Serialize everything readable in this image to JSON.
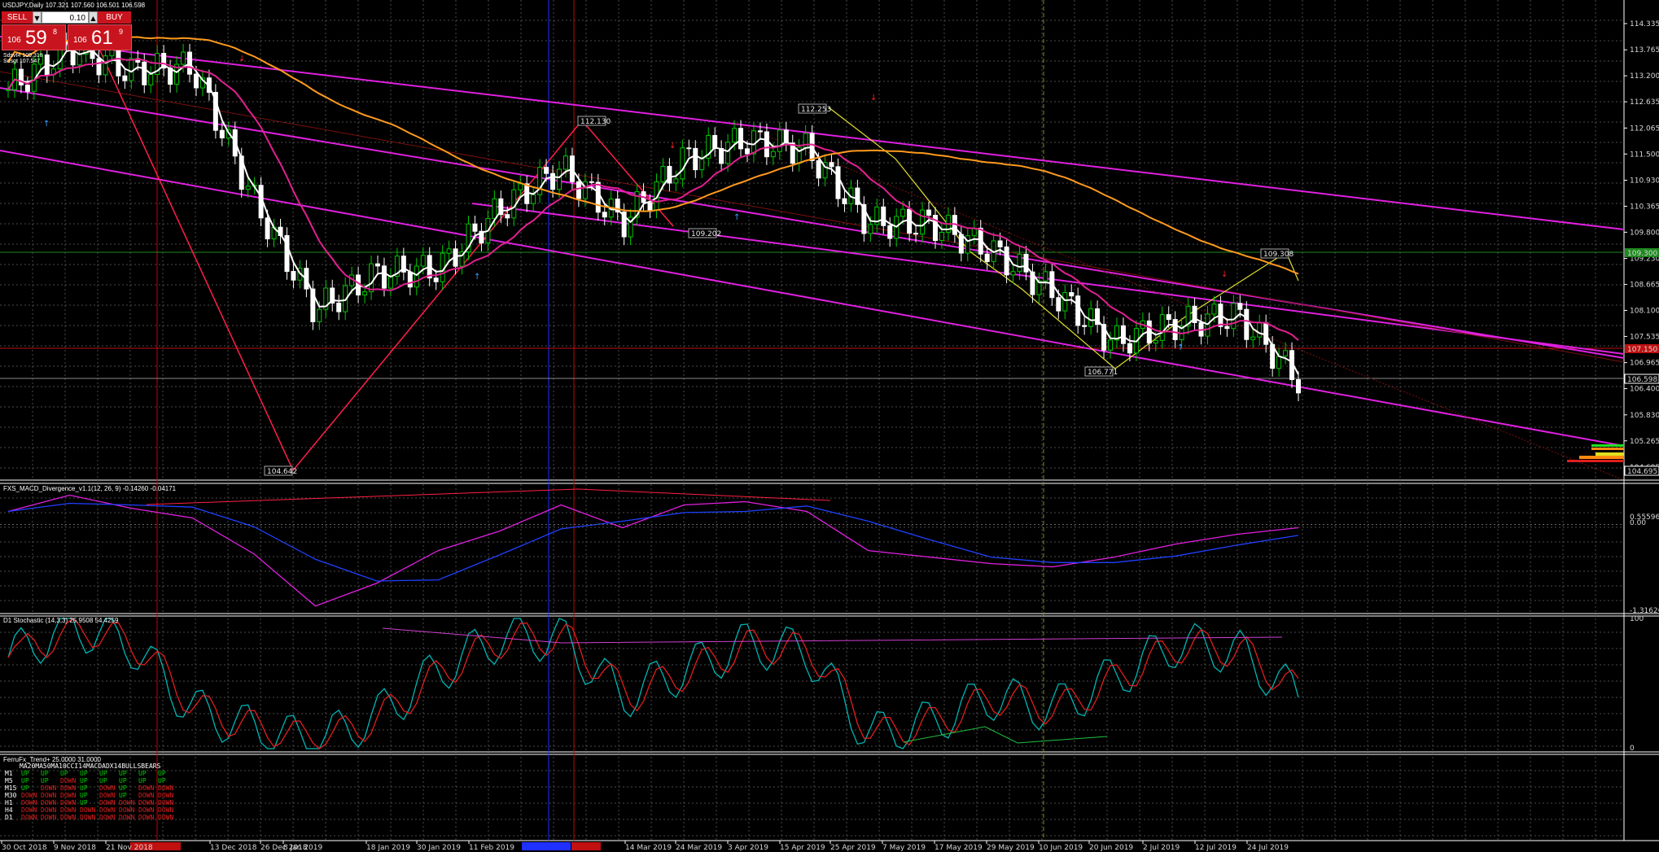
{
  "window": {
    "symbol_header": "USDJPY,Daily  107.321 107.560 106.501 106.598"
  },
  "trade_panel": {
    "sell_label": "SELL",
    "buy_label": "BUY",
    "lot_value": "0.10",
    "sell_small": "106",
    "sell_big": "59",
    "sell_sup": "8",
    "buy_small": "106",
    "buy_big": "61",
    "buy_sup": "9",
    "note1": "Sdsvt4 109.318",
    "note2": "Sdsgt 107.547"
  },
  "colors": {
    "background": "#000000",
    "bull": "#00c800",
    "bear": "#ffffff",
    "channel": "#e020e0",
    "ma_orange": "#ff9a1e",
    "zigzag": "#ff1e4a",
    "stoch_main": "#00b4b4",
    "stoch_signal": "#e01e1e",
    "trend_up": "#00d200",
    "trend_down": "#e01e1e"
  },
  "price_axis": {
    "ticks": [
      "114.335",
      "113.765",
      "113.200",
      "112.635",
      "112.065",
      "111.500",
      "110.930",
      "110.365",
      "109.800",
      "109.230",
      "108.665",
      "108.100",
      "107.535",
      "106.965",
      "106.400",
      "105.830",
      "105.265",
      "104.695"
    ],
    "tag_green": "109.300",
    "tag_red": "107.150",
    "tag_bid": "106.598",
    "tag_low": "104.695"
  },
  "price_labels": {
    "a": "112.130",
    "b": "112.253",
    "c": "109.202",
    "d": "109.308",
    "e": "106.771",
    "f": "104.642"
  },
  "date_axis": [
    "30 Oct 2018",
    "9 Nov 2018",
    "21 Nov 2018",
    "13 Dec 2018",
    "26 Dec 2018",
    "8 Jan 2019",
    "18 Jan 2019",
    "30 Jan 2019",
    "11 Feb 2019",
    "14 Mar 2019",
    "24 Mar 2019",
    "3 Apr 2019",
    "15 Apr 2019",
    "25 Apr 2019",
    "7 May 2019",
    "17 May 2019",
    "29 May 2019",
    "10 Jun 2019",
    "20 Jun 2019",
    "2 Jul 2019",
    "12 Jul 2019",
    "24 Jul 2019"
  ],
  "macd": {
    "title": "FXS_MACD_Divergence_v1.1(12, 26, 9) -0.14260 -0.04171",
    "ticks": [
      "0.55596",
      "0.00",
      "-1.31626"
    ]
  },
  "stoch": {
    "title": "D1 Stochastic (14,3,3) 25.9508 54.4259",
    "ticks": [
      "100",
      "0"
    ]
  },
  "trend": {
    "title": "FerruFx_Trend+ 25.0000 31.0000",
    "headers": "MA20MA50MA10CCI14MACDADX14BULLSBEARS",
    "rows": [
      {
        "tf": "M1",
        "cells": [
          "UP",
          "UP",
          "UP",
          "UP",
          "UP",
          "UP",
          "UP",
          "UP"
        ]
      },
      {
        "tf": "M5",
        "cells": [
          "UP",
          "UP",
          "DOWN",
          "UP",
          "UP",
          "UP",
          "UP",
          "UP"
        ]
      },
      {
        "tf": "M15",
        "cells": [
          "UP",
          "DOWN",
          "DOWN",
          "UP",
          "DOWN",
          "UP",
          "DOWN",
          "DOWN"
        ]
      },
      {
        "tf": "M30",
        "cells": [
          "DOWN",
          "DOWN",
          "DOWN",
          "UP",
          "DOWN",
          "UP",
          "DOWN",
          "DOWN"
        ]
      },
      {
        "tf": "H1",
        "cells": [
          "DOWN",
          "DOWN",
          "DOWN",
          "UP",
          "DOWN",
          "DOWN",
          "DOWN",
          "DOWN"
        ]
      },
      {
        "tf": "H4",
        "cells": [
          "DOWN",
          "DOWN",
          "DOWN",
          "DOWN",
          "DOWN",
          "DOWN",
          "DOWN",
          "DOWN"
        ]
      },
      {
        "tf": "D1",
        "cells": [
          "DOWN",
          "DOWN",
          "DOWN",
          "DOWN",
          "DOWN",
          "DOWN",
          "DOWN",
          "DOWN"
        ]
      }
    ]
  },
  "chart_data": {
    "type": "candlestick",
    "title": "USDJPY,Daily",
    "x": [
      "30 Oct 2018",
      "9 Nov 2018",
      "21 Nov 2018",
      "13 Dec 2018",
      "26 Dec 2018",
      "8 Jan 2019",
      "18 Jan 2019",
      "30 Jan 2019",
      "11 Feb 2019",
      "14 Mar 2019",
      "24 Mar 2019",
      "3 Apr 2019",
      "15 Apr 2019",
      "25 Apr 2019",
      "7 May 2019",
      "17 May 2019",
      "29 May 2019",
      "10 Jun 2019",
      "20 Jun 2019",
      "2 Jul 2019",
      "12 Jul 2019",
      "24 Jul 2019"
    ],
    "close_approx": [
      112.9,
      113.8,
      113.3,
      113.4,
      110.5,
      108.1,
      108.9,
      109.0,
      110.3,
      111.2,
      110.0,
      111.4,
      111.8,
      111.6,
      110.0,
      110.0,
      109.4,
      108.5,
      107.4,
      107.8,
      108.0,
      106.6
    ],
    "ylim": [
      104.5,
      114.6
    ],
    "macd_approx": [
      0.2,
      0.45,
      0.25,
      0.1,
      -0.45,
      -1.25,
      -0.9,
      -0.4,
      -0.1,
      0.3,
      -0.05,
      0.3,
      0.35,
      0.2,
      -0.4,
      -0.5,
      -0.6,
      -0.65,
      -0.5,
      -0.3,
      -0.15,
      -0.05
    ],
    "stoch_main_approx": [
      70,
      95,
      80,
      30,
      15,
      5,
      25,
      60,
      85,
      85,
      40,
      60,
      80,
      75,
      10,
      20,
      40,
      30,
      55,
      80,
      75,
      40
    ]
  }
}
